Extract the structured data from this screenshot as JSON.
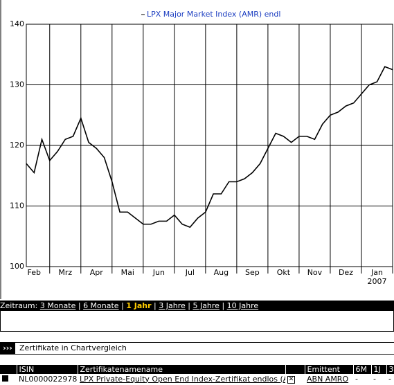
{
  "chart_data": {
    "type": "line",
    "categories": [
      null,
      "Feb",
      null,
      null,
      null,
      "Mrz",
      null,
      null,
      null,
      "Apr",
      null,
      null,
      null,
      "Mai",
      null,
      null,
      null,
      "Jun",
      null,
      null,
      null,
      "Jul",
      null,
      null,
      null,
      "Aug",
      null,
      null,
      null,
      "Sep",
      null,
      null,
      null,
      "Okt",
      null,
      null,
      null,
      "Nov",
      null,
      null,
      null,
      "Dez",
      null,
      null,
      null,
      "Jan",
      null,
      null
    ],
    "year_label": "2007",
    "series": [
      {
        "name": "LPX Major Market Index (AMR) endl",
        "color": "#000000",
        "values": [
          117,
          115.5,
          121,
          117.5,
          119,
          121,
          121.5,
          124.5,
          120.5,
          119.5,
          118,
          114,
          109,
          109,
          108,
          107,
          107,
          107.5,
          107.5,
          108.5,
          107,
          106.5,
          108,
          109,
          112,
          112,
          114,
          114,
          114.5,
          115.5,
          117,
          119.5,
          122,
          121.5,
          120.5,
          121.5,
          121.5,
          121,
          123.5,
          125,
          125.5,
          126.5,
          127,
          128.5,
          130,
          130.5,
          133,
          132.5
        ]
      }
    ],
    "ylim": [
      100,
      140
    ],
    "yticks": [
      100,
      110,
      120,
      130,
      140
    ],
    "grid": true,
    "legend_color": "#1a3cc0"
  },
  "period_bar": {
    "label": "Zeitraum:",
    "options": [
      "3 Monate",
      "6 Monate",
      "1 Jahr",
      "3 Jahre",
      "5 Jahre",
      "10 Jahre"
    ],
    "selected": 2
  },
  "section_title": "Zertifikate in Chartvergleich",
  "table": {
    "headers": [
      "ISIN",
      "Zertifikatenamename",
      "",
      "Emittent",
      "6M",
      "1J",
      "3"
    ],
    "rows": [
      [
        "NL0000022978",
        "LPX Private-Equity Open End Index-Zertifikat endlos (ABN)",
        "",
        "ABN AMRO",
        "-",
        "-",
        "-"
      ]
    ]
  }
}
